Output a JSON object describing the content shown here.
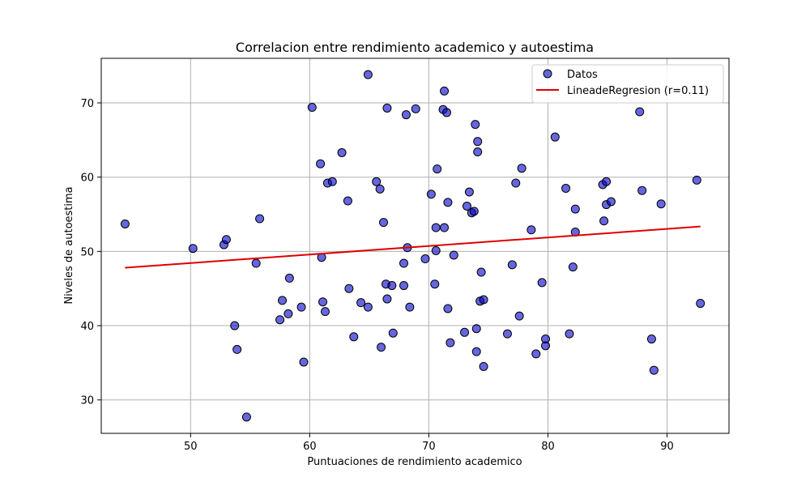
{
  "chart_data": {
    "type": "scatter",
    "title": "Correlacion entre rendimiento academico y autoestima",
    "xlabel": "Puntuaciones de rendimiento academico",
    "ylabel": "Niveles de autoestima",
    "xlim": [
      42.5,
      95.2
    ],
    "ylim": [
      25.5,
      76.0
    ],
    "xticks": [
      50,
      60,
      70,
      80,
      90
    ],
    "yticks": [
      30,
      40,
      50,
      60,
      70
    ],
    "grid": true,
    "legend_position": "top-right",
    "colors": {
      "points": "#0000cc",
      "regression": "#dd0000"
    },
    "series": [
      {
        "name": "Datos",
        "points": [
          [
            44.5,
            53.7
          ],
          [
            50.2,
            50.4
          ],
          [
            52.8,
            50.9
          ],
          [
            53.0,
            51.6
          ],
          [
            53.7,
            40.0
          ],
          [
            53.9,
            36.8
          ],
          [
            54.7,
            27.7
          ],
          [
            55.5,
            48.4
          ],
          [
            55.8,
            54.4
          ],
          [
            57.5,
            40.8
          ],
          [
            57.7,
            43.4
          ],
          [
            58.2,
            41.6
          ],
          [
            58.3,
            46.4
          ],
          [
            59.3,
            42.5
          ],
          [
            59.5,
            35.1
          ],
          [
            60.2,
            69.4
          ],
          [
            60.9,
            61.8
          ],
          [
            61.0,
            49.2
          ],
          [
            61.1,
            43.2
          ],
          [
            61.3,
            41.9
          ],
          [
            61.5,
            59.2
          ],
          [
            61.9,
            59.4
          ],
          [
            62.7,
            63.3
          ],
          [
            63.2,
            56.8
          ],
          [
            63.3,
            45.0
          ],
          [
            63.7,
            38.5
          ],
          [
            64.3,
            43.1
          ],
          [
            64.9,
            73.8
          ],
          [
            64.9,
            42.5
          ],
          [
            65.6,
            59.4
          ],
          [
            65.9,
            58.4
          ],
          [
            66.0,
            37.1
          ],
          [
            66.2,
            53.9
          ],
          [
            66.4,
            45.6
          ],
          [
            66.5,
            69.3
          ],
          [
            66.5,
            43.6
          ],
          [
            66.9,
            45.4
          ],
          [
            67.0,
            39.0
          ],
          [
            67.9,
            45.4
          ],
          [
            67.9,
            48.4
          ],
          [
            68.1,
            68.4
          ],
          [
            68.2,
            50.5
          ],
          [
            68.4,
            42.5
          ],
          [
            68.9,
            69.2
          ],
          [
            69.7,
            49.0
          ],
          [
            70.2,
            57.7
          ],
          [
            70.5,
            45.6
          ],
          [
            70.6,
            53.2
          ],
          [
            70.6,
            50.1
          ],
          [
            70.7,
            61.1
          ],
          [
            71.2,
            69.1
          ],
          [
            71.3,
            71.6
          ],
          [
            71.3,
            53.2
          ],
          [
            71.5,
            68.7
          ],
          [
            71.6,
            56.6
          ],
          [
            71.6,
            42.3
          ],
          [
            71.8,
            37.7
          ],
          [
            72.1,
            49.5
          ],
          [
            73.0,
            39.1
          ],
          [
            73.2,
            56.1
          ],
          [
            73.4,
            58.0
          ],
          [
            73.6,
            55.2
          ],
          [
            73.8,
            55.4
          ],
          [
            73.9,
            67.1
          ],
          [
            74.0,
            39.6
          ],
          [
            74.0,
            36.5
          ],
          [
            74.1,
            63.4
          ],
          [
            74.1,
            64.8
          ],
          [
            74.3,
            43.3
          ],
          [
            74.4,
            47.2
          ],
          [
            74.6,
            43.5
          ],
          [
            74.6,
            34.5
          ],
          [
            76.6,
            38.9
          ],
          [
            77.0,
            48.2
          ],
          [
            77.3,
            59.2
          ],
          [
            77.6,
            41.3
          ],
          [
            77.8,
            61.2
          ],
          [
            78.6,
            52.9
          ],
          [
            79.0,
            36.2
          ],
          [
            79.5,
            45.8
          ],
          [
            79.8,
            38.2
          ],
          [
            79.8,
            37.3
          ],
          [
            80.6,
            65.4
          ],
          [
            81.5,
            58.5
          ],
          [
            81.8,
            38.9
          ],
          [
            82.1,
            47.9
          ],
          [
            82.3,
            52.6
          ],
          [
            82.3,
            55.7
          ],
          [
            84.6,
            59.0
          ],
          [
            84.7,
            54.1
          ],
          [
            84.9,
            56.3
          ],
          [
            84.9,
            59.4
          ],
          [
            85.3,
            56.7
          ],
          [
            87.7,
            68.8
          ],
          [
            87.9,
            58.2
          ],
          [
            88.7,
            38.2
          ],
          [
            88.9,
            34.0
          ],
          [
            89.5,
            56.4
          ],
          [
            92.5,
            59.6
          ],
          [
            92.8,
            43.0
          ]
        ]
      },
      {
        "name": "LineadeRegresion (r=0.11)",
        "type": "line",
        "x": [
          44.5,
          92.8
        ],
        "y": [
          47.8,
          53.35
        ]
      }
    ]
  }
}
